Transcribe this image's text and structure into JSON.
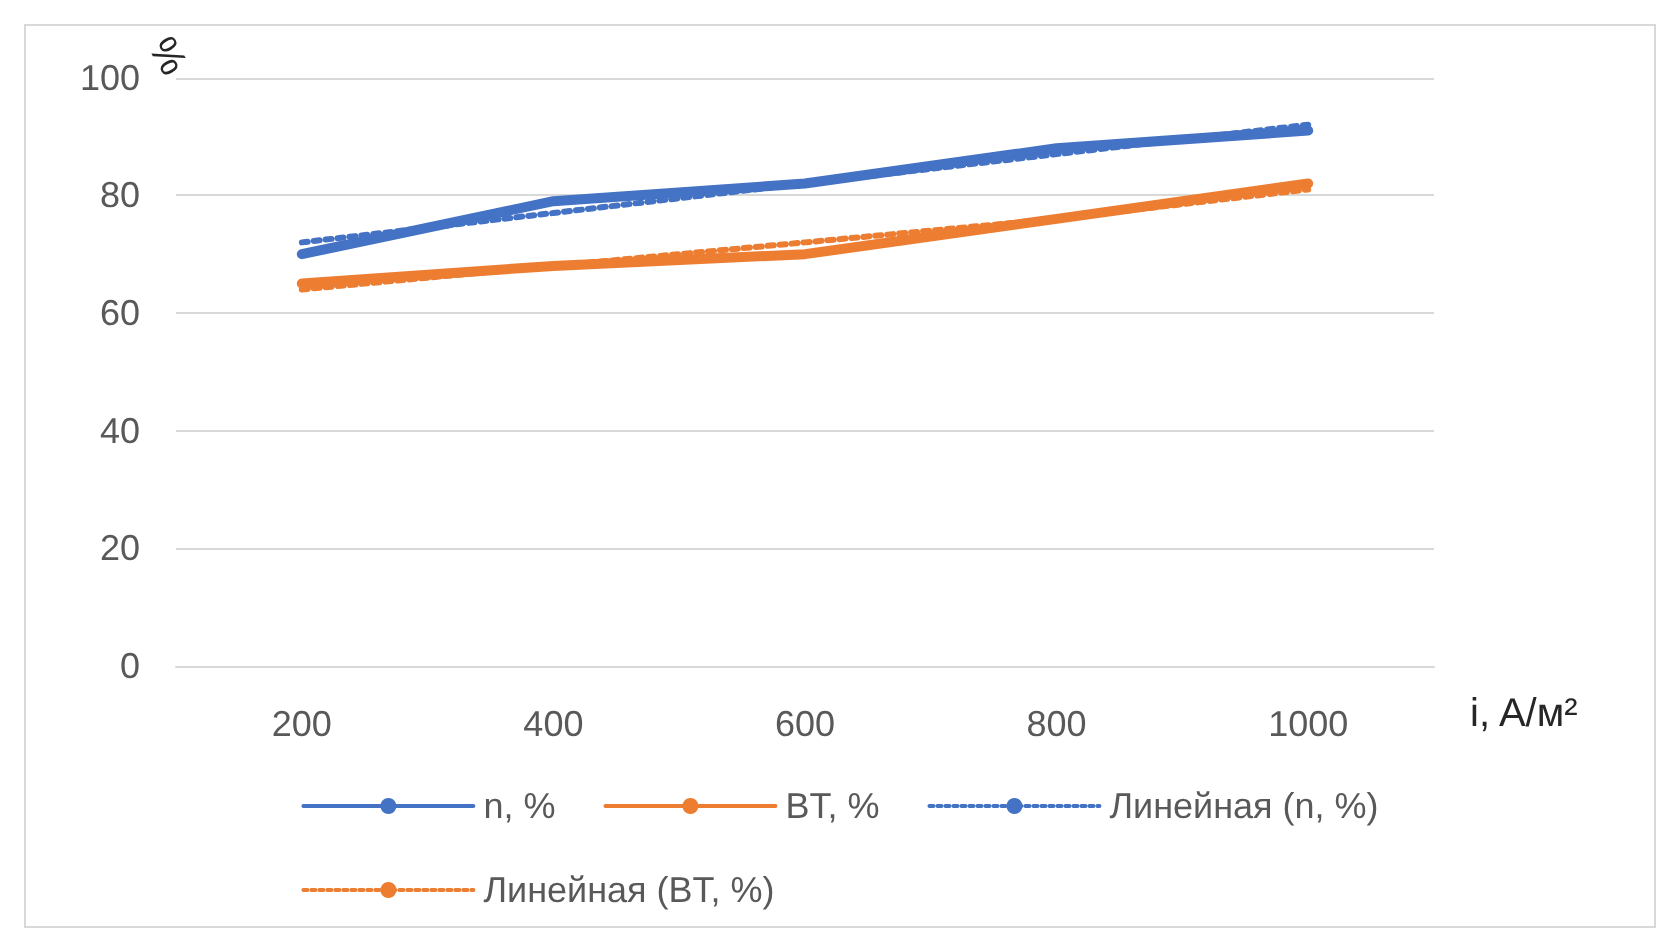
{
  "chart_data": {
    "type": "line",
    "xlabel": "i, A/м²",
    "ylabel": "%",
    "categories": [
      "200",
      "400",
      "600",
      "800",
      "1000"
    ],
    "series": [
      {
        "name": "n, %",
        "color": "#4472c4",
        "values": [
          70,
          79,
          82,
          88,
          91
        ]
      },
      {
        "name": "BT, %",
        "color": "#ed7d31",
        "values": [
          65,
          68,
          70,
          76,
          82
        ]
      },
      {
        "name": "Линейная (n, %)",
        "color": "#4472c4",
        "line_style": "dotted",
        "values": [
          72,
          77,
          82,
          87,
          92
        ]
      },
      {
        "name": "Линейная (BT, %)",
        "color": "#ed7d31",
        "line_style": "dotted",
        "values": [
          64,
          68,
          72,
          76,
          81
        ]
      }
    ],
    "ylim": [
      0,
      100
    ],
    "yticks": [
      0,
      20,
      40,
      60,
      80,
      100
    ],
    "grid": "y",
    "legend": "bottom",
    "marker": "none",
    "line_style": "solid"
  }
}
